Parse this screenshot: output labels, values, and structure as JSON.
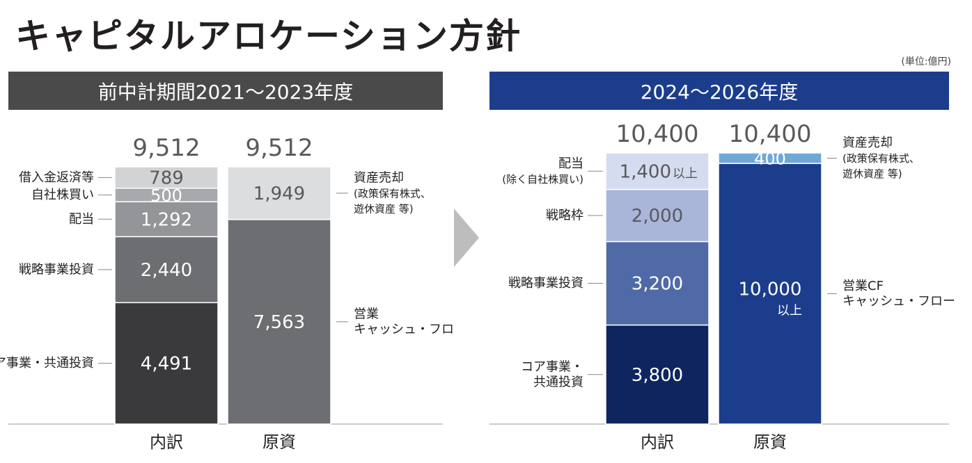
{
  "title": "キャピタルアロケーション方針",
  "unit": "(単位:億円)",
  "panels": {
    "left_title": "前中計期間2021〜2023年度",
    "right_title": "2024〜2026年度"
  },
  "colors": {
    "left_header": "#4a4a4a",
    "right_header": "#1b3d8c",
    "arrow": "#bdbdbd"
  },
  "chart_data": [
    {
      "type": "bar",
      "stacked": true,
      "title": "前中計期間2021〜2023年度",
      "categories": [
        "内訳",
        "原資"
      ],
      "totals": [
        "9,512",
        "9,512"
      ],
      "bars": [
        {
          "category": "内訳",
          "segments": [
            {
              "label": "コア事業・共通投資",
              "value": 4491,
              "value_label": "4,491",
              "color": "#3a3a3c",
              "text_color": "#ffffff"
            },
            {
              "label": "戦略事業投資",
              "value": 2440,
              "value_label": "2,440",
              "color": "#6d6e71",
              "text_color": "#ffffff"
            },
            {
              "label": "配当",
              "value": 1292,
              "value_label": "1,292",
              "color": "#939598",
              "text_color": "#ffffff"
            },
            {
              "label": "自社株買い",
              "value": 500,
              "value_label": "500",
              "color": "#a7a9ac",
              "text_color": "#ffffff"
            },
            {
              "label": "借入金返済等",
              "value": 789,
              "value_label": "789",
              "color": "#d1d3d4",
              "text_color": "#58595b"
            }
          ]
        },
        {
          "category": "原資",
          "segments": [
            {
              "label": "営業\nキャッシュ・フロー",
              "value": 7563,
              "value_label": "7,563",
              "color": "#6d6e71",
              "text_color": "#ffffff"
            },
            {
              "label": "資産売却\n(政策保有株式、\n遊休資産 等)",
              "value": 1949,
              "value_label": "1,949",
              "color": "#dcdddf",
              "text_color": "#58595b"
            }
          ]
        }
      ]
    },
    {
      "type": "bar",
      "stacked": true,
      "title": "2024〜2026年度",
      "categories": [
        "内訳",
        "原資"
      ],
      "totals": [
        "10,400",
        "10,400"
      ],
      "bars": [
        {
          "category": "内訳",
          "segments": [
            {
              "label": "コア事業・\n共通投資",
              "value": 3800,
              "value_label": "3,800",
              "color": "#0f2560",
              "text_color": "#ffffff"
            },
            {
              "label": "戦略事業投資",
              "value": 3200,
              "value_label": "3,200",
              "color": "#4f6aa6",
              "text_color": "#ffffff"
            },
            {
              "label": "戦略枠",
              "value": 2000,
              "value_label": "2,000",
              "color": "#a9b5d9",
              "text_color": "#58595b"
            },
            {
              "label": "配当\n(除く自社株買い)",
              "value": 1400,
              "value_label": "1,400",
              "value_suffix": "以上",
              "color": "#d6dcef",
              "text_color": "#58595b"
            }
          ]
        },
        {
          "category": "原資",
          "segments": [
            {
              "label": "営業CF\nキャッシュ・フロー",
              "value": 10000,
              "value_label": "10,000",
              "value_suffix": "以上",
              "color": "#1b3d8c",
              "text_color": "#ffffff"
            },
            {
              "label": "資産売却\n(政策保有株式、\n遊休資産 等)",
              "value": 400,
              "value_label": "400",
              "color": "#6fa8d6",
              "text_color": "#ffffff"
            }
          ]
        }
      ]
    }
  ]
}
